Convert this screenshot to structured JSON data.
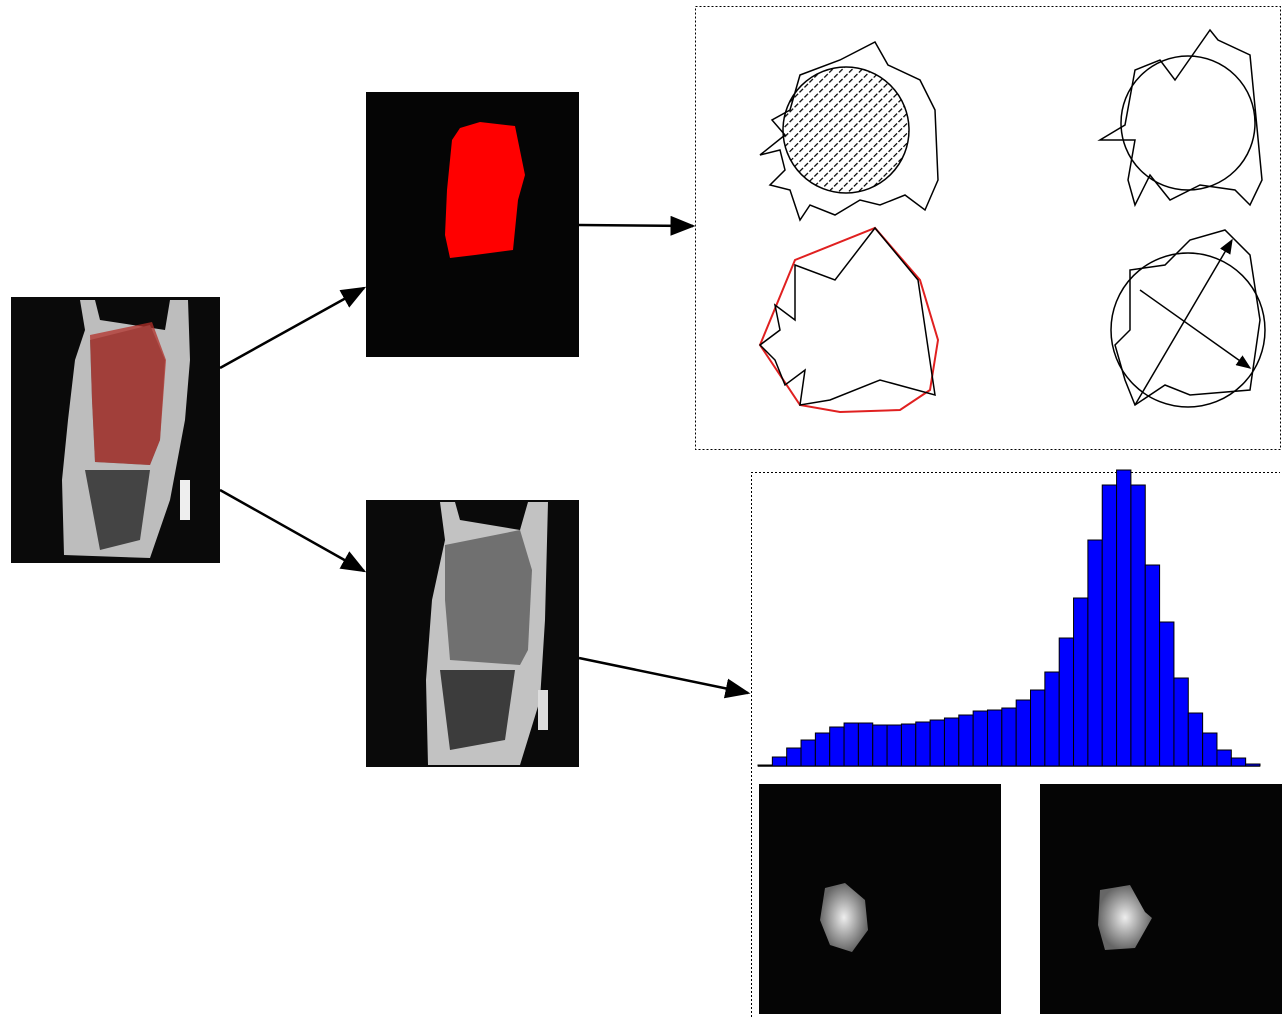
{
  "histogram": {
    "type": "bar",
    "color": "#0000ff",
    "values": [
      1,
      9,
      18,
      26,
      33,
      39,
      43,
      43,
      41,
      41,
      42,
      44,
      46,
      48,
      51,
      55,
      56,
      58,
      66,
      76,
      94,
      128,
      168,
      226,
      281,
      296,
      281,
      201,
      144,
      88,
      53,
      33,
      16,
      8,
      2
    ]
  }
}
